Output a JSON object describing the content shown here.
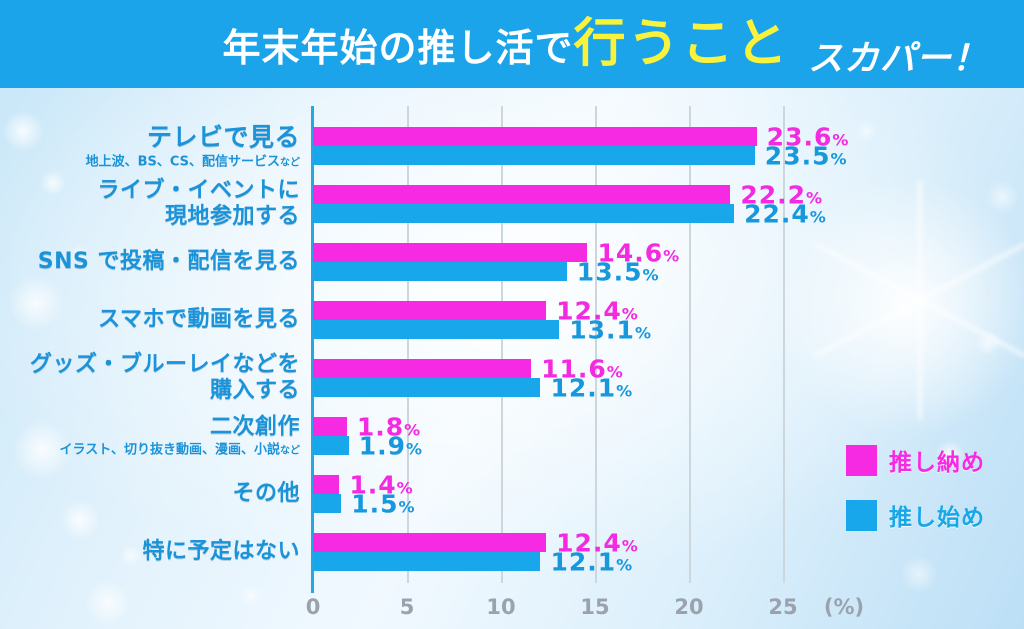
{
  "header": {
    "title_white": "年末年始の推し活で",
    "title_yellow": "行うこと",
    "logo": "スカパー！"
  },
  "colors": {
    "header_bg": "#1ba4e9",
    "title_yellow": "#f8f23d",
    "label_blue": "#1b93d8",
    "oshiosame_magenta": "#f72ae4",
    "oshihajime_blue": "#17a7ea",
    "axis_tick_gray": "#9aa3ad"
  },
  "chart_data": {
    "type": "bar",
    "orientation": "horizontal",
    "title": "年末年始の推し活で行うこと",
    "unit": "%",
    "xlim": [
      0,
      26.6
    ],
    "x_ticks": [
      0,
      5,
      10,
      15,
      20,
      25
    ],
    "x_unit_label": "(%)",
    "grid": "vertical",
    "legend_position": "right",
    "categories": [
      {
        "lines": [
          "テレビで見る"
        ],
        "big": true,
        "sub": "地上波、BS、CS、配信サービス",
        "sub_suffix": "など"
      },
      {
        "lines": [
          "ライブ・イベントに",
          "現地参加する"
        ]
      },
      {
        "lines": [
          "SNS で投稿・配信を見る"
        ]
      },
      {
        "lines": [
          "スマホで動画を見る"
        ]
      },
      {
        "lines": [
          "グッズ・ブルーレイなどを",
          "購入する"
        ]
      },
      {
        "lines": [
          "二次創作"
        ],
        "sub": "イラスト、切り抜き動画、漫画、小説",
        "sub_suffix": "など"
      },
      {
        "lines": [
          "その他"
        ]
      },
      {
        "lines": [
          "特に予定はない"
        ]
      }
    ],
    "series": [
      {
        "name": "推し納め",
        "color": "#f72ae4",
        "label_color": "#f32ae0",
        "values": [
          23.6,
          22.2,
          14.6,
          12.4,
          11.6,
          1.8,
          1.4,
          12.4
        ]
      },
      {
        "name": "推し始め",
        "color": "#17a7ea",
        "label_color": "#1798dd",
        "values": [
          23.5,
          22.4,
          13.5,
          13.1,
          12.1,
          1.9,
          1.5,
          12.1
        ]
      }
    ]
  },
  "legend": {
    "items": [
      {
        "label": "推し納め",
        "color": "#f72ae4"
      },
      {
        "label": "推し始め",
        "color": "#17a7ea"
      }
    ]
  }
}
